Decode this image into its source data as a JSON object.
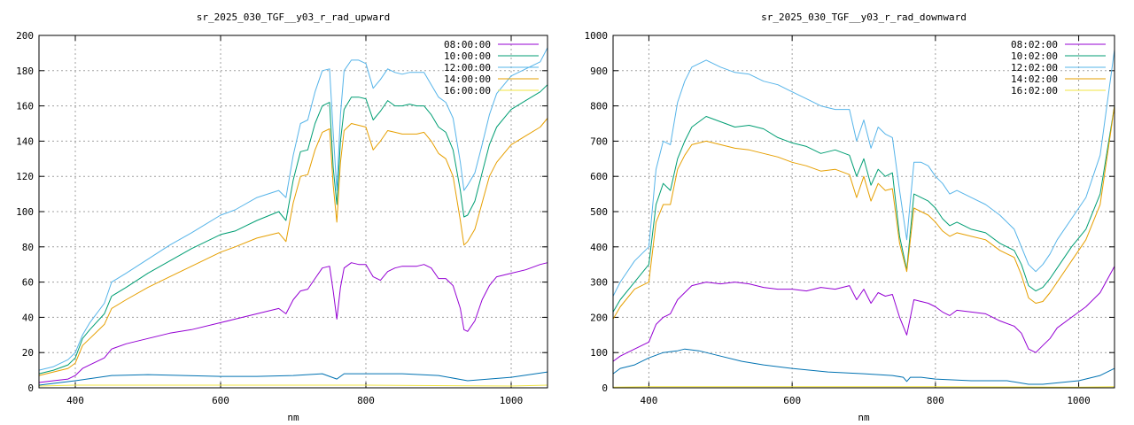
{
  "chart_data": [
    {
      "type": "line",
      "title": "sr_2025_030_TGF__y03_r_rad_upward",
      "xlabel": "nm",
      "ylabel": "",
      "xlim": [
        350,
        1050
      ],
      "ylim": [
        0,
        200
      ],
      "xticks": [
        400,
        600,
        800,
        1000
      ],
      "yticks": [
        0,
        20,
        40,
        60,
        80,
        100,
        120,
        140,
        160,
        180,
        200
      ],
      "grid": true,
      "legend_position": "top-right",
      "series": [
        {
          "name": "08:00:00",
          "color": "#9400d3",
          "x": [
            350,
            370,
            390,
            400,
            410,
            420,
            440,
            450,
            470,
            500,
            530,
            560,
            600,
            620,
            650,
            680,
            690,
            700,
            710,
            720,
            730,
            740,
            750,
            755,
            760,
            765,
            770,
            780,
            790,
            800,
            810,
            820,
            830,
            840,
            850,
            860,
            870,
            880,
            890,
            900,
            910,
            920,
            930,
            935,
            940,
            950,
            960,
            970,
            980,
            1000,
            1020,
            1040,
            1050
          ],
          "y": [
            3,
            4,
            5,
            7,
            11,
            13,
            17,
            22,
            25,
            28,
            31,
            33,
            37,
            39,
            42,
            45,
            42,
            50,
            55,
            56,
            62,
            68,
            69,
            55,
            39,
            57,
            68,
            71,
            70,
            70,
            63,
            61,
            66,
            68,
            69,
            69,
            69,
            70,
            68,
            62,
            62,
            58,
            45,
            33,
            32,
            38,
            50,
            58,
            63,
            65,
            67,
            70,
            71
          ]
        },
        {
          "name": "10:00:00",
          "color": "#009e73",
          "x": [
            350,
            370,
            390,
            400,
            410,
            420,
            440,
            450,
            470,
            500,
            530,
            560,
            600,
            620,
            650,
            680,
            690,
            700,
            710,
            720,
            730,
            740,
            750,
            755,
            760,
            765,
            770,
            780,
            790,
            800,
            810,
            820,
            830,
            840,
            850,
            860,
            870,
            880,
            890,
            900,
            910,
            920,
            930,
            935,
            940,
            950,
            960,
            970,
            980,
            1000,
            1020,
            1040,
            1050
          ],
          "y": [
            8,
            10,
            13,
            17,
            28,
            33,
            42,
            52,
            57,
            65,
            72,
            79,
            87,
            89,
            95,
            100,
            95,
            118,
            134,
            135,
            150,
            160,
            162,
            125,
            104,
            140,
            158,
            165,
            165,
            164,
            152,
            157,
            163,
            160,
            160,
            161,
            160,
            160,
            155,
            148,
            145,
            135,
            112,
            97,
            98,
            106,
            122,
            138,
            148,
            158,
            163,
            168,
            172
          ]
        },
        {
          "name": "12:00:00",
          "color": "#56b4e9",
          "x": [
            350,
            370,
            390,
            400,
            410,
            420,
            440,
            450,
            470,
            500,
            530,
            560,
            600,
            620,
            650,
            680,
            690,
            700,
            710,
            720,
            730,
            740,
            750,
            755,
            760,
            765,
            770,
            780,
            790,
            800,
            810,
            820,
            830,
            840,
            850,
            860,
            870,
            880,
            890,
            900,
            910,
            920,
            930,
            935,
            940,
            950,
            960,
            970,
            980,
            1000,
            1020,
            1040,
            1050
          ],
          "y": [
            10,
            12,
            16,
            20,
            30,
            37,
            48,
            60,
            65,
            73,
            81,
            88,
            98,
            101,
            108,
            112,
            108,
            132,
            150,
            152,
            168,
            180,
            181,
            145,
            112,
            155,
            180,
            186,
            186,
            184,
            170,
            175,
            181,
            179,
            178,
            179,
            179,
            179,
            172,
            165,
            162,
            153,
            128,
            112,
            115,
            122,
            138,
            155,
            167,
            177,
            181,
            185,
            193
          ]
        },
        {
          "name": "14:00:00",
          "color": "#e69f00",
          "x": [
            350,
            370,
            390,
            400,
            410,
            420,
            440,
            450,
            470,
            500,
            530,
            560,
            600,
            620,
            650,
            680,
            690,
            700,
            710,
            720,
            730,
            740,
            750,
            755,
            760,
            765,
            770,
            780,
            790,
            800,
            810,
            820,
            830,
            840,
            850,
            860,
            870,
            880,
            890,
            900,
            910,
            920,
            930,
            935,
            940,
            950,
            960,
            970,
            980,
            1000,
            1020,
            1040,
            1050
          ],
          "y": [
            7,
            9,
            11,
            14,
            24,
            28,
            36,
            45,
            50,
            57,
            63,
            69,
            77,
            80,
            85,
            88,
            83,
            105,
            120,
            121,
            135,
            145,
            147,
            115,
            94,
            128,
            146,
            150,
            149,
            148,
            135,
            140,
            146,
            145,
            144,
            144,
            144,
            145,
            140,
            133,
            130,
            120,
            95,
            81,
            83,
            90,
            105,
            120,
            128,
            138,
            143,
            148,
            153
          ]
        },
        {
          "name": "16:00:00",
          "color": "#f0e442",
          "x": [
            350,
            400,
            600,
            800,
            1000,
            1050
          ],
          "y": [
            1,
            1.5,
            1.5,
            1.5,
            1,
            1.5
          ]
        },
        {
          "name": "",
          "color": "#0072b2",
          "x": [
            350,
            400,
            450,
            500,
            550,
            600,
            650,
            700,
            740,
            760,
            770,
            800,
            850,
            900,
            940,
            1000,
            1050
          ],
          "y": [
            1.5,
            4,
            7,
            7.5,
            7,
            6.5,
            6.5,
            7,
            8,
            5,
            8,
            8,
            8,
            7,
            4,
            6,
            9
          ]
        }
      ]
    },
    {
      "type": "line",
      "title": "sr_2025_030_TGF__y03_r_rad_downward",
      "xlabel": "nm",
      "ylabel": "",
      "xlim": [
        350,
        1050
      ],
      "ylim": [
        0,
        1000
      ],
      "xticks": [
        400,
        600,
        800,
        1000
      ],
      "yticks": [
        0,
        100,
        200,
        300,
        400,
        500,
        600,
        700,
        800,
        900,
        1000
      ],
      "grid": true,
      "legend_position": "top-right",
      "series": [
        {
          "name": "08:02:00",
          "color": "#9400d3",
          "x": [
            350,
            360,
            380,
            400,
            410,
            420,
            430,
            440,
            450,
            460,
            480,
            500,
            520,
            540,
            560,
            580,
            600,
            620,
            640,
            660,
            680,
            690,
            700,
            710,
            720,
            730,
            740,
            750,
            760,
            770,
            780,
            790,
            800,
            810,
            820,
            830,
            850,
            870,
            890,
            910,
            920,
            930,
            940,
            950,
            960,
            970,
            990,
            1010,
            1030,
            1050
          ],
          "y": [
            75,
            90,
            110,
            130,
            180,
            200,
            210,
            250,
            270,
            290,
            300,
            295,
            300,
            295,
            285,
            280,
            280,
            275,
            285,
            280,
            290,
            250,
            280,
            240,
            270,
            260,
            265,
            200,
            150,
            250,
            245,
            240,
            230,
            215,
            205,
            220,
            215,
            210,
            190,
            175,
            155,
            110,
            100,
            120,
            140,
            170,
            200,
            230,
            270,
            345
          ]
        },
        {
          "name": "10:02:00",
          "color": "#009e73",
          "x": [
            350,
            360,
            380,
            400,
            410,
            420,
            430,
            440,
            450,
            460,
            480,
            500,
            520,
            540,
            560,
            580,
            600,
            620,
            640,
            660,
            680,
            690,
            700,
            710,
            720,
            730,
            740,
            750,
            760,
            770,
            780,
            790,
            800,
            810,
            820,
            830,
            850,
            870,
            890,
            910,
            920,
            930,
            940,
            950,
            960,
            970,
            990,
            1010,
            1030,
            1050
          ],
          "y": [
            215,
            250,
            300,
            350,
            520,
            580,
            560,
            650,
            700,
            740,
            770,
            755,
            740,
            745,
            735,
            710,
            695,
            685,
            665,
            675,
            660,
            600,
            650,
            575,
            620,
            600,
            610,
            430,
            335,
            550,
            540,
            530,
            510,
            480,
            460,
            470,
            450,
            440,
            410,
            390,
            350,
            290,
            275,
            285,
            310,
            340,
            400,
            450,
            550,
            800
          ]
        },
        {
          "name": "12:02:00",
          "color": "#56b4e9",
          "x": [
            350,
            360,
            380,
            400,
            410,
            420,
            430,
            440,
            450,
            460,
            480,
            500,
            520,
            540,
            560,
            580,
            600,
            620,
            640,
            660,
            680,
            690,
            700,
            710,
            720,
            730,
            740,
            750,
            760,
            770,
            780,
            790,
            800,
            810,
            820,
            830,
            850,
            870,
            890,
            910,
            920,
            930,
            940,
            950,
            960,
            970,
            990,
            1010,
            1030,
            1050
          ],
          "y": [
            260,
            300,
            360,
            400,
            620,
            700,
            690,
            810,
            870,
            910,
            930,
            910,
            895,
            890,
            870,
            860,
            840,
            820,
            800,
            790,
            790,
            700,
            760,
            680,
            740,
            720,
            710,
            560,
            420,
            640,
            640,
            630,
            600,
            580,
            550,
            560,
            540,
            520,
            490,
            450,
            400,
            350,
            330,
            350,
            380,
            420,
            480,
            540,
            660,
            960
          ]
        },
        {
          "name": "14:02:00",
          "color": "#e69f00",
          "x": [
            350,
            360,
            380,
            400,
            410,
            420,
            430,
            440,
            450,
            460,
            480,
            500,
            520,
            540,
            560,
            580,
            600,
            620,
            640,
            660,
            680,
            690,
            700,
            710,
            720,
            730,
            740,
            750,
            760,
            770,
            780,
            790,
            800,
            810,
            820,
            830,
            850,
            870,
            890,
            910,
            920,
            930,
            940,
            950,
            960,
            970,
            990,
            1010,
            1030,
            1050
          ],
          "y": [
            195,
            230,
            280,
            300,
            470,
            520,
            520,
            620,
            660,
            690,
            700,
            690,
            680,
            675,
            665,
            655,
            640,
            630,
            615,
            620,
            605,
            540,
            600,
            530,
            580,
            560,
            565,
            410,
            330,
            510,
            500,
            490,
            470,
            445,
            430,
            440,
            430,
            420,
            390,
            370,
            320,
            255,
            240,
            245,
            270,
            300,
            360,
            420,
            520,
            800
          ]
        },
        {
          "name": "16:02:00",
          "color": "#f0e442",
          "x": [
            350,
            400,
            600,
            800,
            1000,
            1050
          ],
          "y": [
            2,
            3,
            3,
            3,
            2,
            3
          ]
        },
        {
          "name": "",
          "color": "#0072b2",
          "x": [
            350,
            360,
            380,
            400,
            420,
            440,
            450,
            470,
            500,
            530,
            560,
            600,
            650,
            700,
            740,
            755,
            760,
            765,
            780,
            800,
            850,
            900,
            930,
            950,
            1000,
            1030,
            1050
          ],
          "y": [
            40,
            55,
            65,
            85,
            100,
            105,
            110,
            105,
            90,
            75,
            65,
            55,
            45,
            40,
            35,
            30,
            18,
            30,
            30,
            25,
            20,
            20,
            10,
            10,
            20,
            35,
            55
          ]
        }
      ]
    }
  ]
}
